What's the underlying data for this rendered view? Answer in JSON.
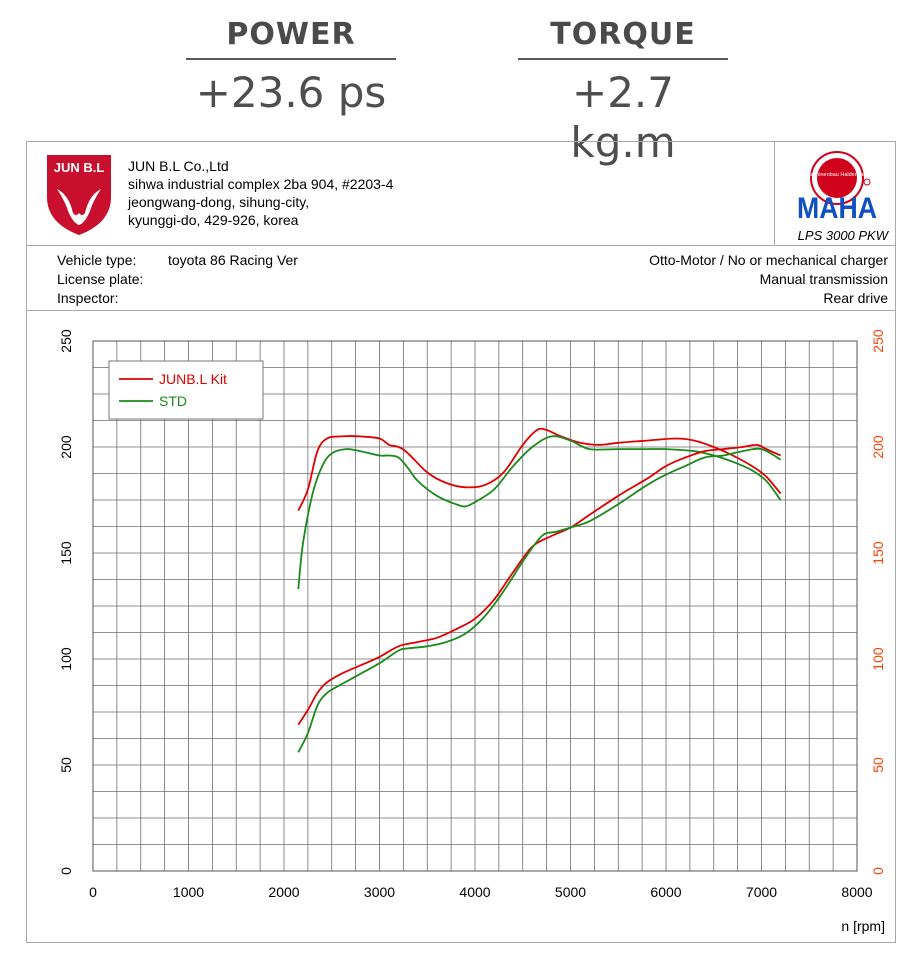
{
  "stats": {
    "power": {
      "label": "POWER",
      "value": "+23.6 ps"
    },
    "torque": {
      "label": "TORQUE",
      "value": "+2.7 kg.m"
    }
  },
  "company": {
    "logo_text": "JUN B.L",
    "name": "JUN B.L Co.,Ltd",
    "address_lines": [
      "sihwa industrial complex 2ba 904, #2203-4",
      "jeongwang-dong, sihung-city,",
      "kyunggi-do, 429-926, korea"
    ]
  },
  "maha": {
    "logo_text": "MAHA",
    "ring_text": "Maschinenbau Haldenwang",
    "model": "LPS 3000 PKW"
  },
  "vehicle": {
    "vehicle_type_label": "Vehicle type:",
    "vehicle_type_value": "toyota 86 Racing Ver",
    "license_label": "License plate:",
    "inspector_label": "Inspector:",
    "engine": "Otto-Motor / No or mechanical charger",
    "transmission": "Manual transmission",
    "drive": "Rear drive"
  },
  "colors": {
    "kit": "#e00000",
    "std": "#1a8a1a",
    "right_axis": "#ff4000",
    "grid": "#6e6e6e"
  },
  "chart_data": {
    "type": "line",
    "xlabel": "n [rpm]",
    "xlim": [
      0,
      8000
    ],
    "ylim": [
      0,
      250
    ],
    "xticks": [
      0,
      1000,
      2000,
      3000,
      4000,
      5000,
      6000,
      7000,
      8000
    ],
    "yticks": [
      0,
      50,
      100,
      150,
      200,
      250
    ],
    "y2ticks": [
      0,
      50,
      100,
      150,
      200,
      250
    ],
    "grid": true,
    "legend": "top-left",
    "series": [
      {
        "name": "JUNB.L Kit",
        "color": "red",
        "quantity": "power",
        "x": [
          2150,
          2250,
          2350,
          2450,
          2600,
          2800,
          3000,
          3100,
          3200,
          3300,
          3500,
          3700,
          3900,
          4100,
          4300,
          4500,
          4650,
          4750,
          4900,
          5100,
          5300,
          5500,
          5800,
          6100,
          6300,
          6500,
          6700,
          6900,
          7050,
          7200
        ],
        "y": [
          170,
          180,
          198,
          204,
          205,
          205,
          204,
          201,
          200,
          197,
          188,
          183,
          181,
          182,
          188,
          201,
          208,
          208,
          205,
          202,
          201,
          202,
          203,
          204,
          203,
          200,
          196,
          191,
          186,
          178
        ]
      },
      {
        "name": "STD",
        "color": "green",
        "quantity": "power",
        "x": [
          2150,
          2200,
          2300,
          2400,
          2500,
          2650,
          2800,
          3000,
          3100,
          3200,
          3300,
          3400,
          3600,
          3800,
          3900,
          4000,
          4200,
          4400,
          4600,
          4800,
          5000,
          5200,
          5500,
          5800,
          6000,
          6300,
          6500,
          6700,
          6900,
          7050,
          7200
        ],
        "y": [
          133,
          155,
          178,
          191,
          197,
          199,
          198,
          196,
          196,
          195,
          190,
          184,
          177,
          173,
          172,
          174,
          180,
          191,
          200,
          205,
          203,
          199,
          199,
          199,
          199,
          198,
          196,
          193,
          189,
          184,
          175
        ]
      },
      {
        "name": "JUNB.L Kit",
        "color": "red",
        "quantity": "torque",
        "x": [
          2150,
          2250,
          2350,
          2450,
          2600,
          2800,
          3000,
          3200,
          3400,
          3600,
          3800,
          4000,
          4200,
          4400,
          4600,
          4800,
          5000,
          5200,
          5500,
          5800,
          6000,
          6200,
          6400,
          6600,
          6800,
          6950,
          7050,
          7200
        ],
        "y": [
          69,
          76,
          84,
          89,
          93,
          97,
          101,
          106,
          108,
          110,
          114,
          119,
          128,
          141,
          153,
          158,
          162,
          168,
          177,
          185,
          191,
          195,
          198,
          199,
          200,
          201,
          199,
          196
        ]
      },
      {
        "name": "STD",
        "color": "green",
        "quantity": "torque",
        "x": [
          2150,
          2250,
          2350,
          2450,
          2600,
          2800,
          3000,
          3200,
          3300,
          3500,
          3700,
          3900,
          4100,
          4300,
          4500,
          4700,
          4850,
          5000,
          5200,
          5500,
          5800,
          6000,
          6200,
          6400,
          6600,
          6800,
          7000,
          7200
        ],
        "y": [
          56,
          65,
          78,
          84,
          88,
          93,
          98,
          104,
          105,
          106,
          108,
          112,
          120,
          132,
          146,
          158,
          160,
          162,
          165,
          173,
          182,
          187,
          191,
          195,
          196,
          198,
          199,
          194
        ]
      }
    ]
  }
}
